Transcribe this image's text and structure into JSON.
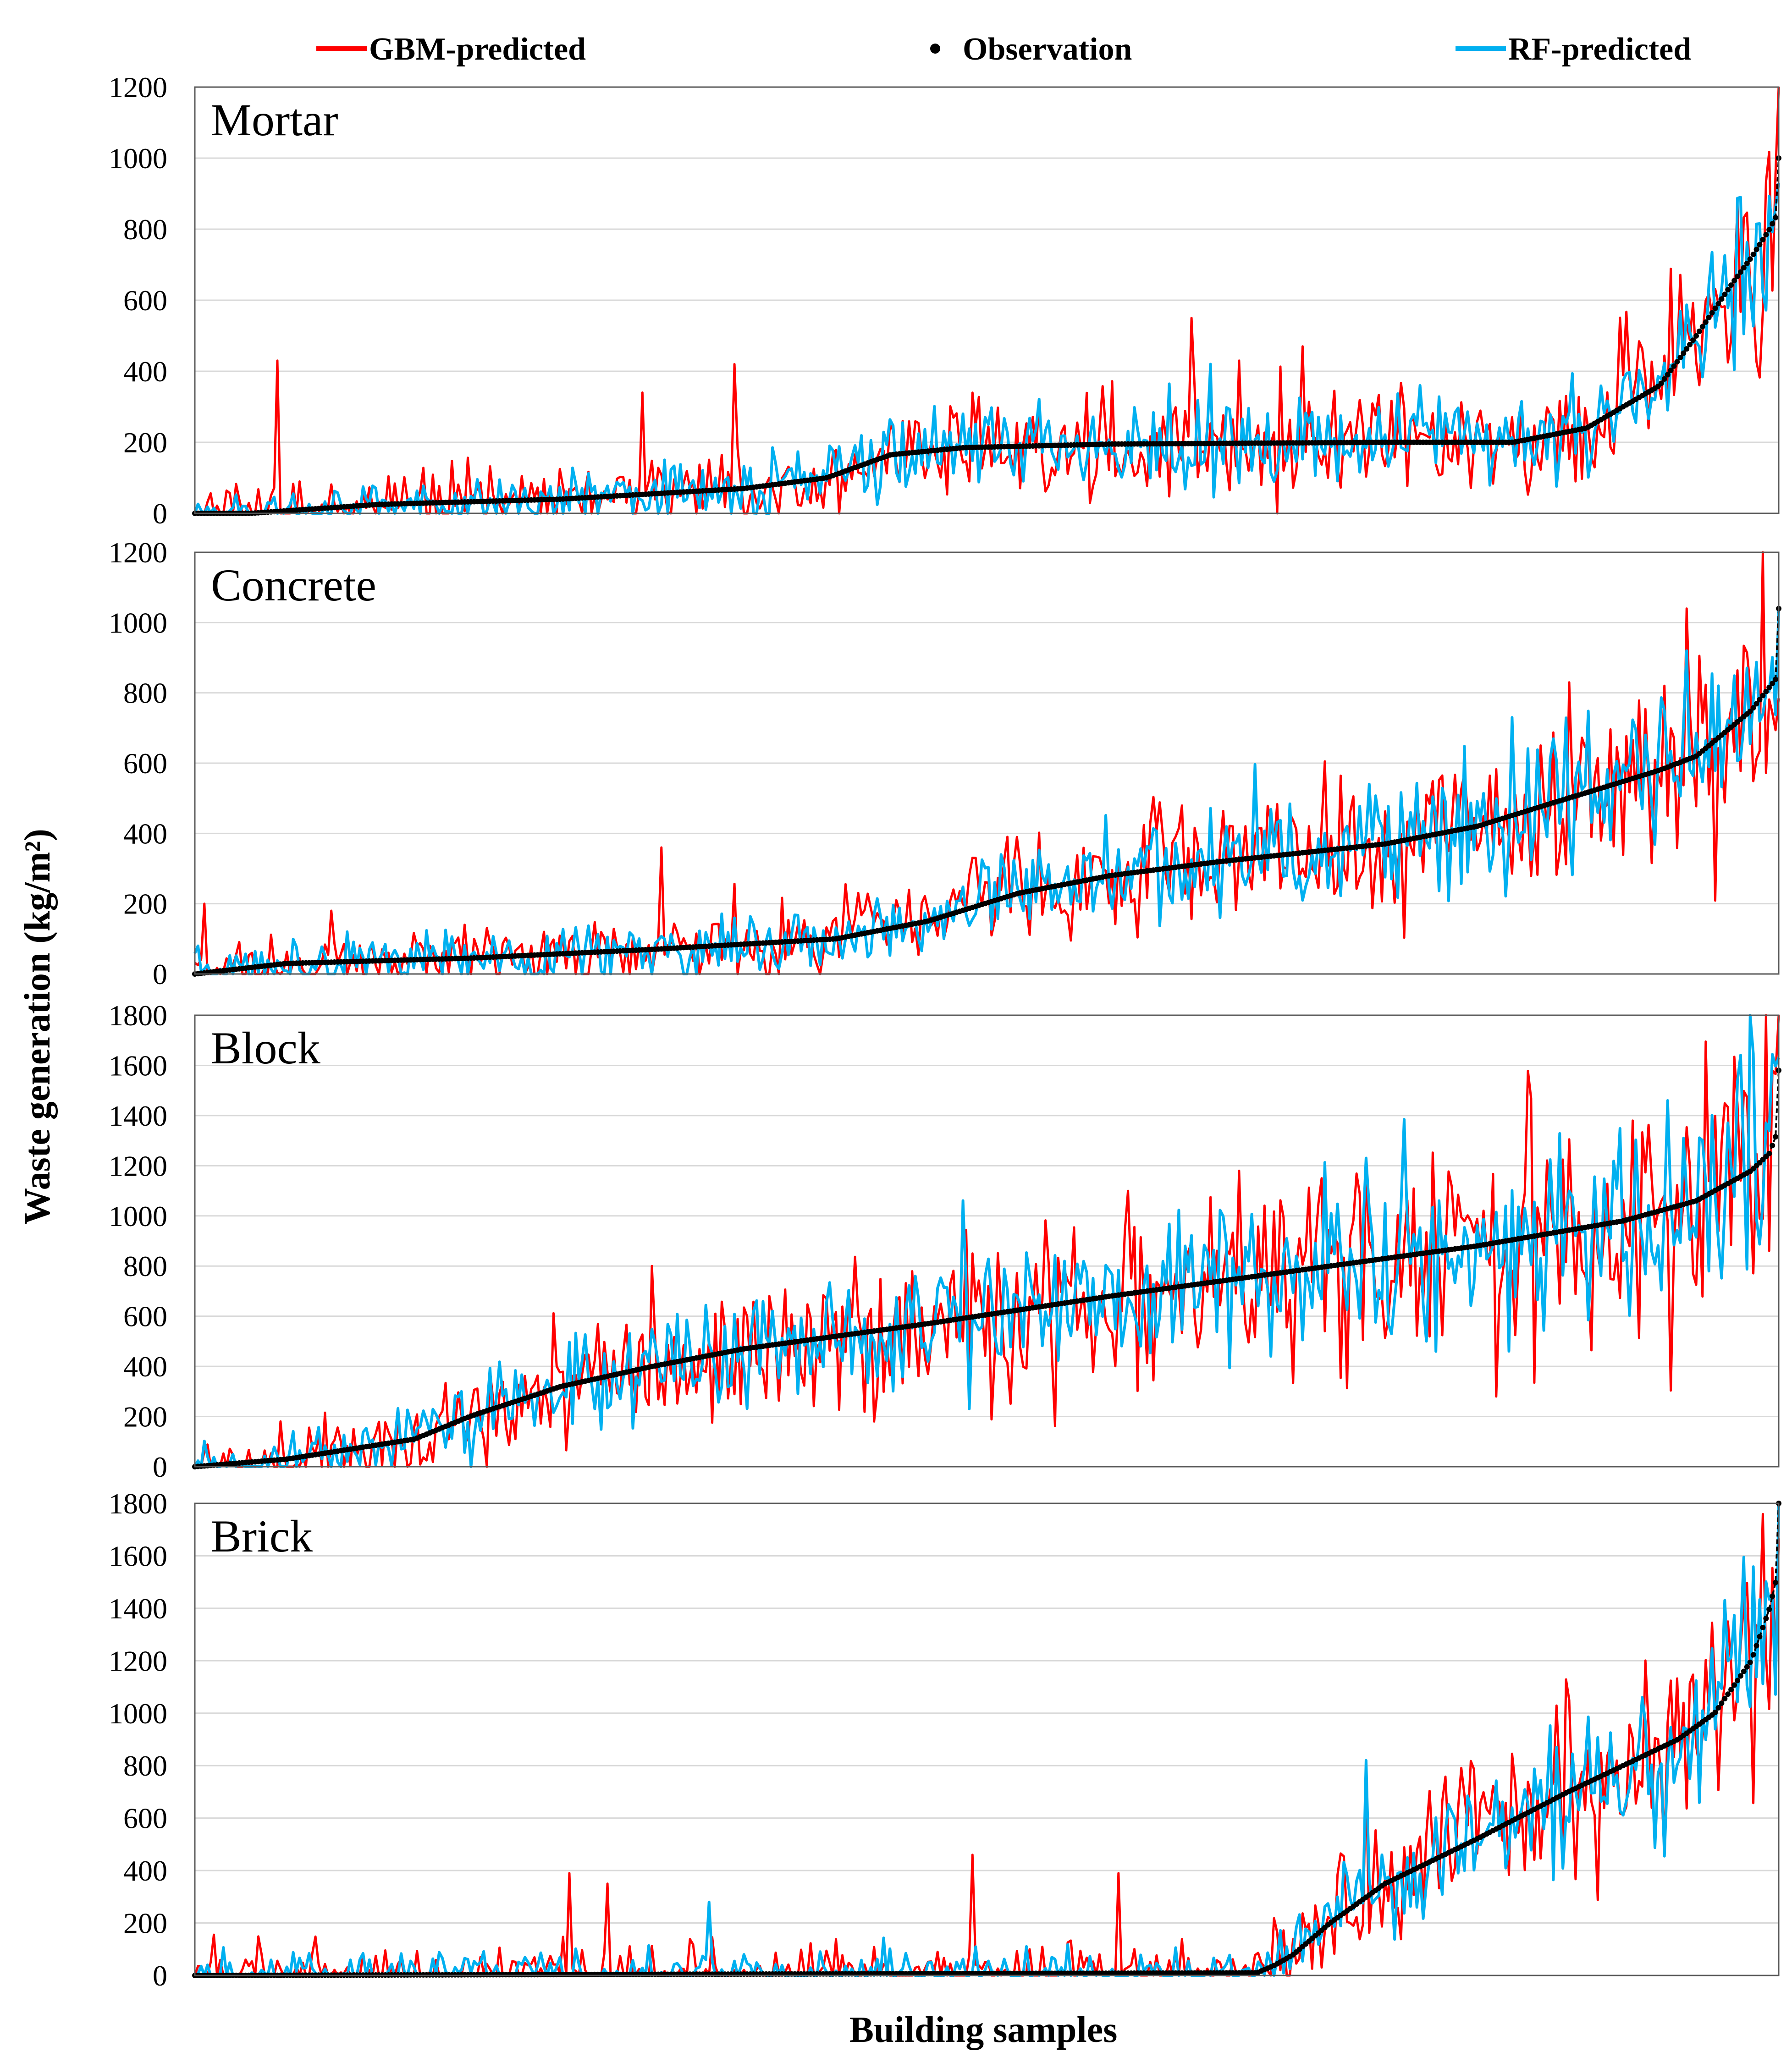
{
  "chart_data": {
    "type": "line",
    "ylabel": "Waste generation (kg/m²)",
    "xlabel": "Building samples",
    "legend": {
      "position": "top",
      "entries": [
        {
          "name": "GBM-predicted",
          "color": "#ff0000",
          "marker": "line"
        },
        {
          "name": "Observation",
          "color": "#000000",
          "marker": "dot"
        },
        {
          "name": "RF-predicted",
          "color": "#00b0f0",
          "marker": "line"
        }
      ]
    },
    "sample_count": 500,
    "panels": [
      {
        "title": "Mortar",
        "ylim": [
          0,
          1200
        ],
        "yticks": [
          "0",
          "200",
          "400",
          "600",
          "800",
          "1000",
          "1200"
        ],
        "observation_profile": [
          [
            0,
            0
          ],
          [
            30,
            0
          ],
          [
            100,
            25
          ],
          [
            200,
            40
          ],
          [
            300,
            70
          ],
          [
            345,
            100
          ],
          [
            380,
            165
          ],
          [
            420,
            185
          ],
          [
            500,
            195
          ],
          [
            650,
            200
          ],
          [
            720,
            200
          ],
          [
            760,
            240
          ],
          [
            800,
            360
          ],
          [
            820,
            500
          ],
          [
            840,
            650
          ],
          [
            850,
            720
          ],
          [
            860,
            800
          ],
          [
            865,
            850
          ]
        ],
        "observation_max": 1000,
        "gbm_spikes": [
          [
            45,
            430
          ],
          [
            245,
            340
          ],
          [
            295,
            420
          ],
          [
            545,
            550
          ],
          [
            605,
            470
          ]
        ],
        "rf_spikes": [
          [
            420,
            280
          ],
          [
            555,
            420
          ],
          [
            845,
            890
          ]
        ]
      },
      {
        "title": "Concrete",
        "ylim": [
          0,
          1200
        ],
        "yticks": [
          "0",
          "200",
          "400",
          "600",
          "800",
          "1000",
          "1200"
        ],
        "observation_profile": [
          [
            0,
            0
          ],
          [
            50,
            30
          ],
          [
            150,
            45
          ],
          [
            250,
            70
          ],
          [
            350,
            100
          ],
          [
            400,
            150
          ],
          [
            450,
            230
          ],
          [
            500,
            280
          ],
          [
            560,
            320
          ],
          [
            650,
            370
          ],
          [
            700,
            420
          ],
          [
            750,
            500
          ],
          [
            800,
            580
          ],
          [
            820,
            620
          ],
          [
            850,
            750
          ],
          [
            865,
            850
          ]
        ],
        "observation_max": 1040,
        "gbm_spikes": [
          [
            5,
            200
          ],
          [
            75,
            180
          ],
          [
            255,
            360
          ],
          [
            750,
            830
          ],
          [
            815,
            1040
          ]
        ],
        "rf_spikes": [
          [
            720,
            730
          ],
          [
            815,
            920
          ]
        ]
      },
      {
        "title": "Block",
        "ylim": [
          0,
          1800
        ],
        "yticks": [
          "0",
          "200",
          "400",
          "600",
          "800",
          "1000",
          "1200",
          "1400",
          "1600",
          "1800"
        ],
        "observation_profile": [
          [
            0,
            0
          ],
          [
            50,
            30
          ],
          [
            120,
            110
          ],
          [
            150,
            200
          ],
          [
            200,
            320
          ],
          [
            250,
            400
          ],
          [
            300,
            470
          ],
          [
            400,
            570
          ],
          [
            500,
            680
          ],
          [
            600,
            780
          ],
          [
            700,
            880
          ],
          [
            780,
            980
          ],
          [
            820,
            1060
          ],
          [
            850,
            1180
          ],
          [
            860,
            1250
          ],
          [
            865,
            1350
          ]
        ],
        "observation_max": 1580,
        "gbm_spikes": [
          [
            250,
            800
          ],
          [
            510,
            1100
          ],
          [
            570,
            1180
          ],
          [
            615,
            1150
          ]
        ],
        "rf_spikes": [
          [
            145,
            300
          ],
          [
            540,
            880
          ],
          [
            650,
            1050
          ]
        ]
      },
      {
        "title": "Brick",
        "ylim": [
          0,
          1800
        ],
        "yticks": [
          "0",
          "200",
          "400",
          "600",
          "800",
          "1000",
          "1200",
          "1400",
          "1600",
          "1800"
        ],
        "observation_profile": [
          [
            0,
            0
          ],
          [
            580,
            10
          ],
          [
            590,
            40
          ],
          [
            600,
            80
          ],
          [
            620,
            200
          ],
          [
            650,
            350
          ],
          [
            700,
            520
          ],
          [
            750,
            700
          ],
          [
            780,
            800
          ],
          [
            810,
            900
          ],
          [
            830,
            1000
          ],
          [
            850,
            1200
          ],
          [
            860,
            1400
          ],
          [
            865,
            1550
          ]
        ],
        "observation_max": 1800,
        "gbm_spikes": [
          [
            205,
            390
          ],
          [
            225,
            350
          ],
          [
            425,
            460
          ],
          [
            505,
            390
          ],
          [
            640,
            760
          ],
          [
            750,
            1050
          ]
        ],
        "rf_spikes": [
          [
            280,
            280
          ],
          [
            640,
            820
          ],
          [
            790,
            1060
          ]
        ]
      }
    ]
  }
}
